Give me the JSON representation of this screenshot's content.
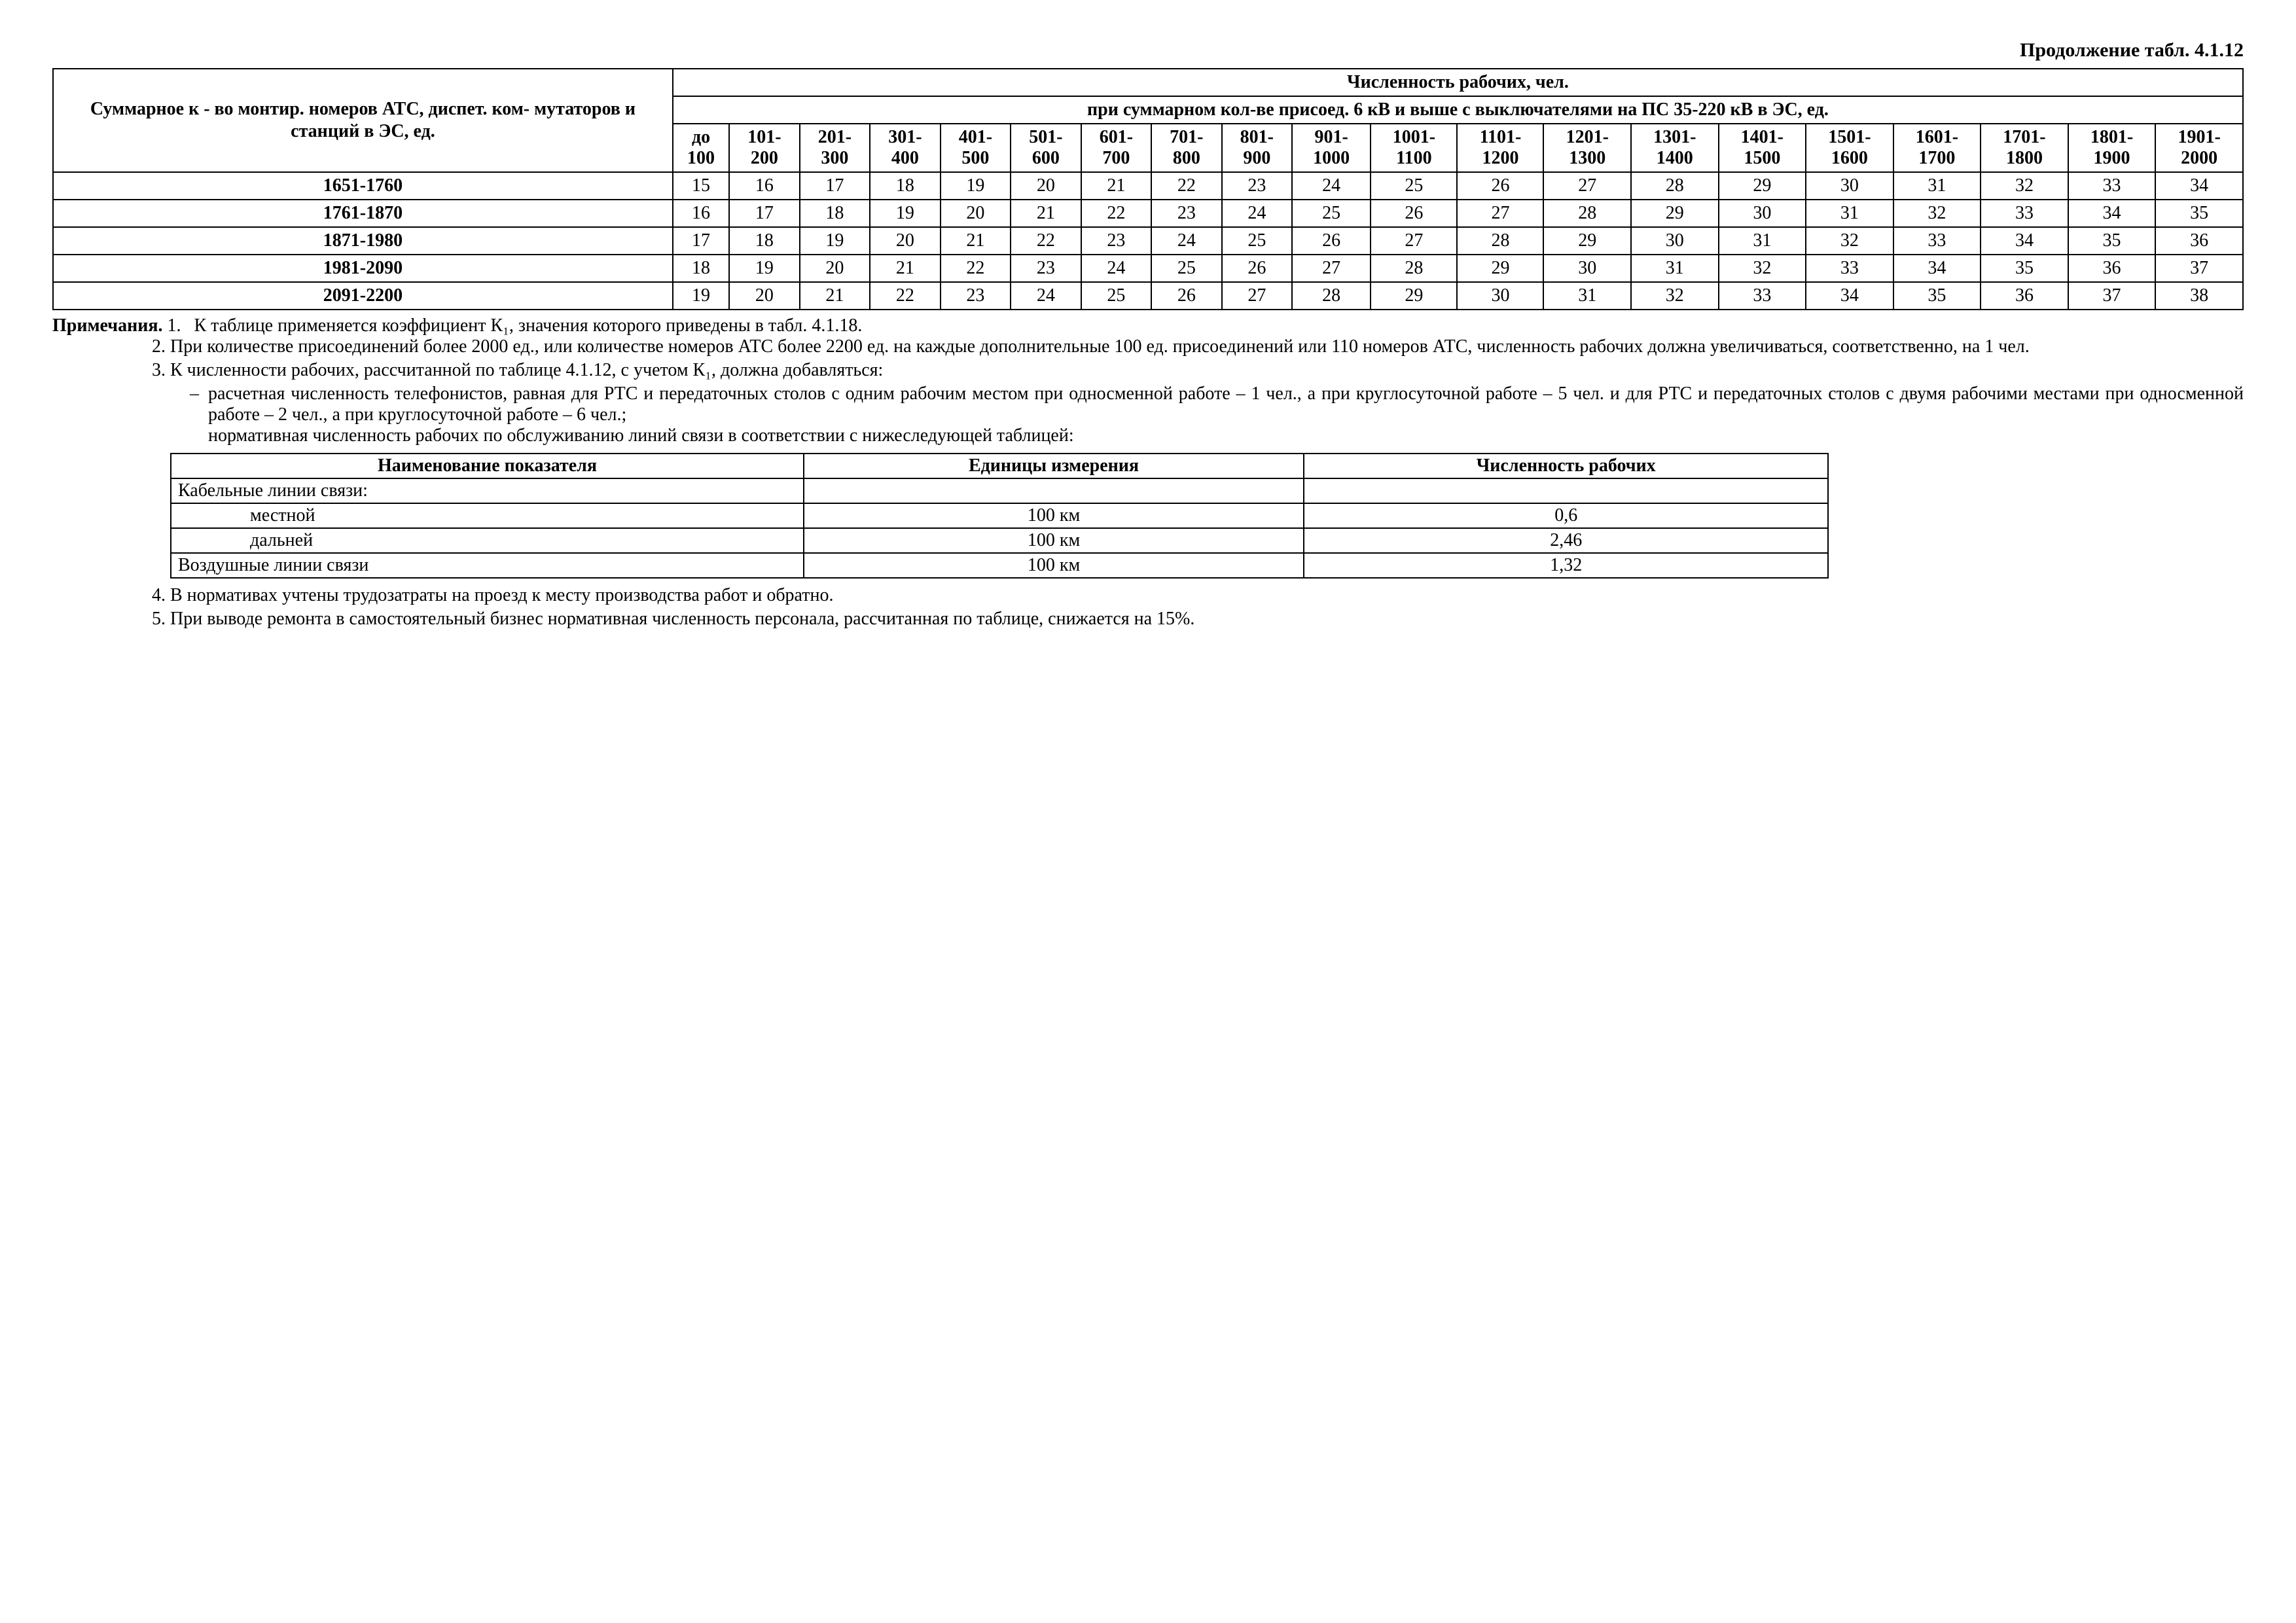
{
  "title": "Продолжение табл. 4.1.12",
  "main_table": {
    "left_header": "Суммарное к - во монтир. номеров АТС, диспет. ком- мутаторов и станций в ЭС, ед.",
    "super_header1": "Численность рабочих, чел.",
    "super_header2": "при суммарном кол-ве присоед. 6 кВ и выше с выключателями на ПС 35-220 кВ в ЭС, ед.",
    "col_headers": [
      "до 100",
      "101- 200",
      "201- 300",
      "301- 400",
      "401- 500",
      "501- 600",
      "601- 700",
      "701- 800",
      "801- 900",
      "901- 1000",
      "1001- 1100",
      "1101- 1200",
      "1201- 1300",
      "1301- 1400",
      "1401- 1500",
      "1501- 1600",
      "1601- 1700",
      "1701- 1800",
      "1801- 1900",
      "1901- 2000"
    ],
    "rows": [
      {
        "label": "1651-1760",
        "vals": [
          "15",
          "16",
          "17",
          "18",
          "19",
          "20",
          "21",
          "22",
          "23",
          "24",
          "25",
          "26",
          "27",
          "28",
          "29",
          "30",
          "31",
          "32",
          "33",
          "34"
        ]
      },
      {
        "label": "1761-1870",
        "vals": [
          "16",
          "17",
          "18",
          "19",
          "20",
          "21",
          "22",
          "23",
          "24",
          "25",
          "26",
          "27",
          "28",
          "29",
          "30",
          "31",
          "32",
          "33",
          "34",
          "35"
        ]
      },
      {
        "label": "1871-1980",
        "vals": [
          "17",
          "18",
          "19",
          "20",
          "21",
          "22",
          "23",
          "24",
          "25",
          "26",
          "27",
          "28",
          "29",
          "30",
          "31",
          "32",
          "33",
          "34",
          "35",
          "36"
        ]
      },
      {
        "label": "1981-2090",
        "vals": [
          "18",
          "19",
          "20",
          "21",
          "22",
          "23",
          "24",
          "25",
          "26",
          "27",
          "28",
          "29",
          "30",
          "31",
          "32",
          "33",
          "34",
          "35",
          "36",
          "37"
        ]
      },
      {
        "label": "2091-2200",
        "vals": [
          "19",
          "20",
          "21",
          "22",
          "23",
          "24",
          "25",
          "26",
          "27",
          "28",
          "29",
          "30",
          "31",
          "32",
          "33",
          "34",
          "35",
          "36",
          "37",
          "38"
        ]
      }
    ]
  },
  "notes": {
    "label": "Примечания.",
    "items": [
      "К таблице применяется коэффициент К₁, значения которого приведены в табл. 4.1.18.",
      "При количестве присоединений более 2000 ед., или количестве номеров АТС более 2200 ед. на каждые дополнительные 100 ед. присоединений или 110 номеров АТС, численность рабочих должна увеличиваться, соответственно, на 1 чел.",
      "К численности рабочих, рассчитанной по таблице 4.1.12, с учетом К₁, должна добавляться:",
      "В нормативах учтены трудозатраты на проезд к месту производства работ и обратно.",
      "При выводе ремонта в самостоятельный бизнес нормативная численность персонала, рассчитанная по таблице, снижается на 15%."
    ],
    "sub3_bullet": "расчетная численность телефонистов, равная для РТС и передаточных столов с одним рабочим местом при односменной работе – 1 чел., а при круглосуточной работе – 5 чел. и для РТС и передаточных столов с двумя рабочими местами при односменной работе – 2 чел., а при круглосуточной работе – 6 чел.;",
    "sub3_line": "нормативная численность рабочих по обслуживанию линий связи в соответствии с нижеследующей таблицей:"
  },
  "sub_table": {
    "headers": [
      "Наименование показателя",
      "Единицы измерения",
      "Численность рабочих"
    ],
    "rows": [
      {
        "c1": "Кабельные линии связи:",
        "c2": "",
        "c3": ""
      },
      {
        "c1": "местной",
        "c2": "100 км",
        "c3": "0,6",
        "indent": true
      },
      {
        "c1": "дальней",
        "c2": "100 км",
        "c3": "2,46",
        "indent": true
      },
      {
        "c1": "Воздушные линии связи",
        "c2": "100 км",
        "c3": "1,32"
      }
    ]
  }
}
